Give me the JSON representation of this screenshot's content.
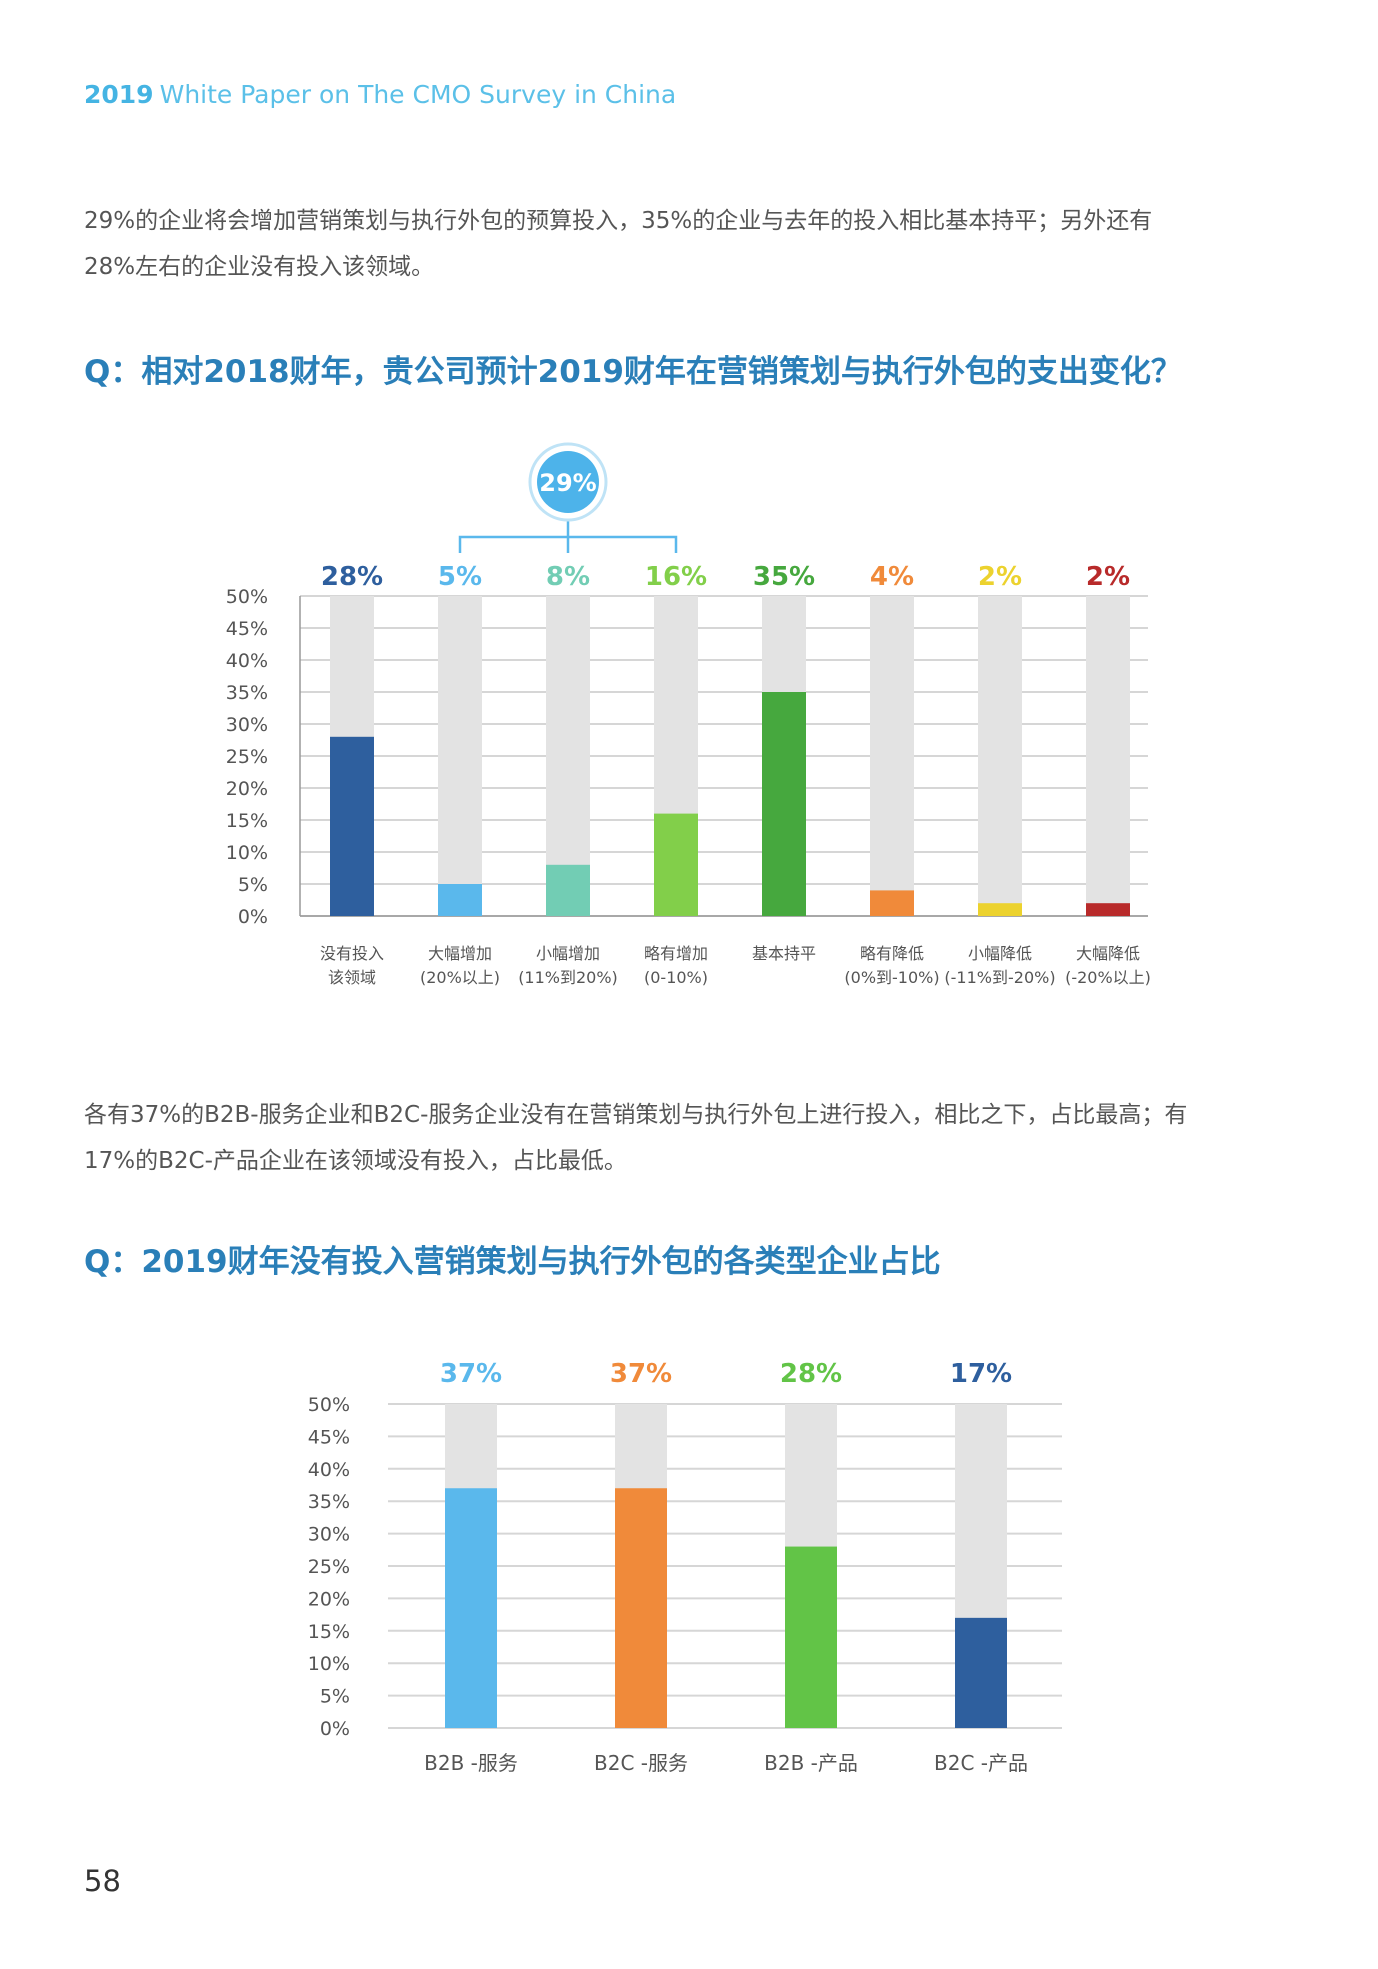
{
  "header": {
    "year": "2019",
    "title": "White Paper on The CMO Survey in China"
  },
  "paragraph1": {
    "line1": "29%的企业将会增加营销策划与执行外包的预算投入，35%的企业与去年的投入相比基本持平；另外还有",
    "line2": "28%左右的企业没有投入该领域。"
  },
  "question1": "Q：相对2018财年，贵公司预计2019财年在营销策划与执行外包的支出变化？",
  "paragraph2": {
    "line1": "各有37%的B2B-服务企业和B2C-服务企业没有在营销策划与执行外包上进行投入，相比之下，占比最高；有",
    "line2": "17%的B2C-产品企业在该领域没有投入，占比最低。"
  },
  "question2": "Q：2019财年没有投入营销策划与执行外包的各类型企业占比",
  "page_number": "58",
  "chart_data": [
    {
      "type": "bar",
      "title": "",
      "ylim": [
        0,
        50
      ],
      "yticks": [
        "0%",
        "5%",
        "10%",
        "15%",
        "20%",
        "25%",
        "30%",
        "35%",
        "40%",
        "45%",
        "50%"
      ],
      "grid": true,
      "categories": [
        [
          "没有投入",
          "该领域"
        ],
        [
          "大幅增加",
          "(20%以上)"
        ],
        [
          "小幅增加",
          "(11%到20%)"
        ],
        [
          "略有增加",
          "(0-10%)"
        ],
        [
          "基本持平"
        ],
        [
          "略有降低",
          "(0%到-10%)"
        ],
        [
          "小幅降低",
          "(-11%到-20%)"
        ],
        [
          "大幅降低",
          "(-20%以上)"
        ]
      ],
      "values": [
        28,
        5,
        8,
        16,
        35,
        4,
        2,
        2
      ],
      "value_labels": [
        "28%",
        "5%",
        "8%",
        "16%",
        "35%",
        "4%",
        "2%",
        "2%"
      ],
      "colors": [
        "#2e5f9e",
        "#5ab8ec",
        "#72cdb4",
        "#82cf4a",
        "#46a83e",
        "#f08a3a",
        "#ecd22e",
        "#b82a2a"
      ],
      "background_color": "#e3e3e3",
      "group_annotation": {
        "label": "29%",
        "group_indices": [
          1,
          2,
          3
        ]
      }
    },
    {
      "type": "bar",
      "title": "",
      "ylim": [
        0,
        50
      ],
      "yticks": [
        "0%",
        "5%",
        "10%",
        "15%",
        "20%",
        "25%",
        "30%",
        "35%",
        "40%",
        "45%",
        "50%"
      ],
      "grid": true,
      "categories": [
        "B2B -服务",
        "B2C -服务",
        "B2B -产品",
        "B2C -产品"
      ],
      "values": [
        37,
        37,
        28,
        17
      ],
      "value_labels": [
        "37%",
        "37%",
        "28%",
        "17%"
      ],
      "colors": [
        "#5ab8ec",
        "#f08a3a",
        "#62c447",
        "#2e5f9e"
      ],
      "background_color": "#e3e3e3"
    }
  ]
}
